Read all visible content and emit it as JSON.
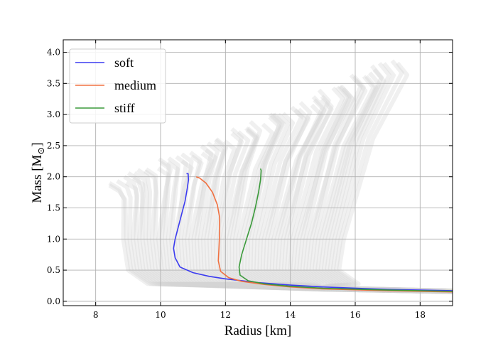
{
  "chart_data": {
    "type": "line",
    "xlabel": "Radius [km]",
    "ylabel_main": "Mass [M",
    "ylabel_sub": "⊙",
    "ylabel_close": "]",
    "xlim": [
      7.0,
      19.0
    ],
    "ylim": [
      -0.07,
      4.2
    ],
    "xticks": [
      8,
      10,
      12,
      14,
      16,
      18
    ],
    "xtick_labels": [
      "8",
      "10",
      "12",
      "14",
      "16",
      "18"
    ],
    "yticks": [
      0.0,
      0.5,
      1.0,
      1.5,
      2.0,
      2.5,
      3.0,
      3.5,
      4.0
    ],
    "ytick_labels": [
      "0.0",
      "0.5",
      "1.0",
      "1.5",
      "2.0",
      "2.5",
      "3.0",
      "3.5",
      "4.0"
    ],
    "grid": true,
    "legend_position": "top-left",
    "background_ensemble": {
      "color": "#d3d3d3",
      "description_count": 70,
      "radius_at_low_mass_range": [
        9.0,
        15.5
      ],
      "max_mass_range": [
        1.9,
        3.9
      ]
    },
    "series": [
      {
        "name": "soft",
        "color": "#3b3bf0",
        "points": [
          [
            19.0,
            0.17
          ],
          [
            17.0,
            0.19
          ],
          [
            15.0,
            0.23
          ],
          [
            14.0,
            0.26
          ],
          [
            13.0,
            0.3
          ],
          [
            12.0,
            0.36
          ],
          [
            11.5,
            0.4
          ],
          [
            11.0,
            0.46
          ],
          [
            10.6,
            0.55
          ],
          [
            10.45,
            0.7
          ],
          [
            10.4,
            0.85
          ],
          [
            10.45,
            1.0
          ],
          [
            10.55,
            1.2
          ],
          [
            10.65,
            1.4
          ],
          [
            10.75,
            1.6
          ],
          [
            10.82,
            1.8
          ],
          [
            10.86,
            1.95
          ],
          [
            10.85,
            2.05
          ],
          [
            10.8,
            2.05
          ]
        ]
      },
      {
        "name": "medium",
        "color": "#f07040",
        "points": [
          [
            19.0,
            0.15
          ],
          [
            17.0,
            0.17
          ],
          [
            15.0,
            0.2
          ],
          [
            14.0,
            0.23
          ],
          [
            13.2,
            0.27
          ],
          [
            12.5,
            0.32
          ],
          [
            12.1,
            0.38
          ],
          [
            11.85,
            0.48
          ],
          [
            11.78,
            0.65
          ],
          [
            11.8,
            0.85
          ],
          [
            11.82,
            1.1
          ],
          [
            11.82,
            1.35
          ],
          [
            11.75,
            1.55
          ],
          [
            11.6,
            1.75
          ],
          [
            11.4,
            1.9
          ],
          [
            11.2,
            1.98
          ],
          [
            11.1,
            2.0
          ]
        ]
      },
      {
        "name": "stiff",
        "color": "#3a9a3a",
        "points": [
          [
            19.0,
            0.16
          ],
          [
            17.0,
            0.18
          ],
          [
            15.0,
            0.21
          ],
          [
            14.0,
            0.24
          ],
          [
            13.2,
            0.28
          ],
          [
            12.7,
            0.33
          ],
          [
            12.45,
            0.42
          ],
          [
            12.42,
            0.55
          ],
          [
            12.5,
            0.75
          ],
          [
            12.65,
            1.0
          ],
          [
            12.8,
            1.25
          ],
          [
            12.92,
            1.5
          ],
          [
            13.02,
            1.75
          ],
          [
            13.08,
            1.95
          ],
          [
            13.1,
            2.1
          ],
          [
            13.08,
            2.13
          ]
        ]
      }
    ]
  }
}
